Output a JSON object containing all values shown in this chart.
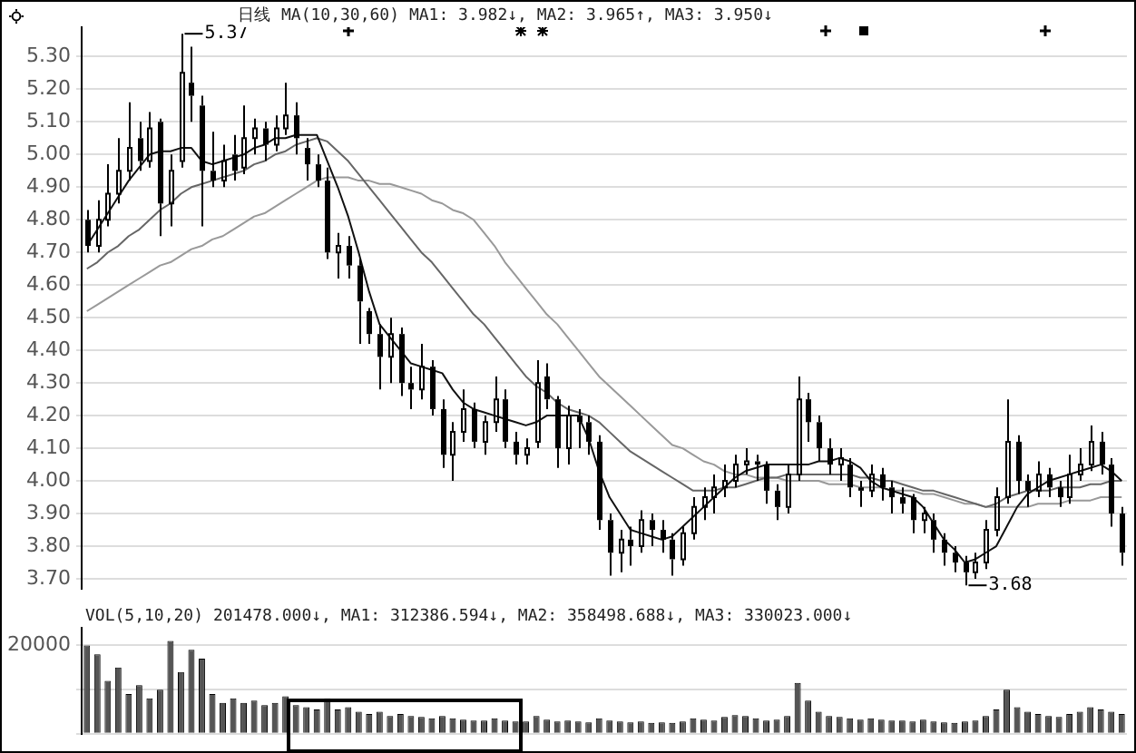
{
  "chart_data": [
    {
      "type": "candlestick",
      "title": "日线",
      "subtitle": "MA(10,30,60) MA1: 3.982↓, MA2: 3.965↑, MA3: 3.950↓",
      "annotations": [
        "5.37",
        "3.68"
      ],
      "categories": [
        null,
        null,
        null,
        null,
        null,
        null,
        null,
        null,
        null,
        null,
        null,
        null,
        null,
        null,
        null,
        null,
        null,
        null,
        null,
        null,
        null,
        null,
        null,
        null,
        null,
        null,
        null,
        null,
        null,
        null,
        null,
        null,
        null,
        null,
        null,
        null,
        null,
        null,
        null,
        null,
        null,
        null,
        null,
        null,
        null,
        null,
        null,
        null,
        null,
        null,
        null,
        null,
        null,
        null,
        null,
        null,
        null,
        null,
        null,
        null,
        null,
        null,
        null,
        null,
        null,
        null,
        null,
        null,
        null,
        null,
        null,
        null,
        null,
        null,
        null,
        null,
        null,
        null,
        null,
        null,
        null,
        null,
        null,
        null,
        null,
        null,
        null,
        null,
        null,
        null,
        null,
        null,
        null,
        null,
        null,
        null,
        null,
        null,
        null,
        null
      ],
      "color": "#000000",
      "ohlc": [
        [
          4.8,
          4.83,
          4.7,
          4.72
        ],
        [
          4.72,
          4.86,
          4.7,
          4.8
        ],
        [
          4.8,
          4.97,
          4.78,
          4.88
        ],
        [
          4.88,
          5.05,
          4.85,
          4.95
        ],
        [
          4.95,
          5.16,
          4.92,
          5.02
        ],
        [
          5.05,
          5.1,
          4.95,
          4.98
        ],
        [
          4.98,
          5.13,
          4.96,
          5.08
        ],
        [
          5.1,
          5.11,
          4.75,
          4.85
        ],
        [
          4.85,
          5.0,
          4.78,
          4.95
        ],
        [
          4.98,
          5.37,
          4.96,
          5.25
        ],
        [
          5.22,
          5.33,
          5.1,
          5.18
        ],
        [
          5.15,
          5.18,
          4.78,
          4.95
        ],
        [
          4.95,
          5.07,
          4.9,
          4.92
        ],
        [
          4.92,
          5.03,
          4.9,
          4.98
        ],
        [
          5.0,
          5.06,
          4.92,
          4.95
        ],
        [
          4.96,
          5.15,
          4.94,
          5.05
        ],
        [
          5.05,
          5.11,
          5.0,
          5.08
        ],
        [
          5.08,
          5.1,
          4.98,
          5.03
        ],
        [
          5.03,
          5.12,
          5.01,
          5.08
        ],
        [
          5.08,
          5.22,
          5.06,
          5.12
        ],
        [
          5.12,
          5.16,
          5.0,
          5.05
        ],
        [
          5.02,
          5.05,
          4.92,
          4.97
        ],
        [
          4.97,
          5.0,
          4.9,
          4.92
        ],
        [
          4.92,
          4.96,
          4.68,
          4.7
        ],
        [
          4.7,
          4.76,
          4.62,
          4.72
        ],
        [
          4.72,
          4.75,
          4.62,
          4.66
        ],
        [
          4.66,
          4.68,
          4.42,
          4.55
        ],
        [
          4.52,
          4.53,
          4.42,
          4.45
        ],
        [
          4.45,
          4.48,
          4.28,
          4.38
        ],
        [
          4.38,
          4.5,
          4.3,
          4.45
        ],
        [
          4.45,
          4.47,
          4.26,
          4.3
        ],
        [
          4.3,
          4.35,
          4.22,
          4.28
        ],
        [
          4.28,
          4.42,
          4.25,
          4.35
        ],
        [
          4.35,
          4.37,
          4.2,
          4.22
        ],
        [
          4.22,
          4.25,
          4.04,
          4.08
        ],
        [
          4.08,
          4.18,
          4.0,
          4.15
        ],
        [
          4.15,
          4.28,
          4.12,
          4.22
        ],
        [
          4.22,
          4.24,
          4.1,
          4.12
        ],
        [
          4.12,
          4.2,
          4.08,
          4.18
        ],
        [
          4.18,
          4.32,
          4.15,
          4.25
        ],
        [
          4.25,
          4.28,
          4.1,
          4.12
        ],
        [
          4.12,
          4.15,
          4.05,
          4.08
        ],
        [
          4.08,
          4.13,
          4.05,
          4.1
        ],
        [
          4.12,
          4.37,
          4.1,
          4.3
        ],
        [
          4.32,
          4.36,
          4.22,
          4.25
        ],
        [
          4.25,
          4.26,
          4.04,
          4.1
        ],
        [
          4.1,
          4.23,
          4.05,
          4.2
        ],
        [
          4.2,
          4.22,
          4.1,
          4.18
        ],
        [
          4.18,
          4.2,
          4.08,
          4.12
        ],
        [
          4.12,
          4.14,
          3.85,
          3.88
        ],
        [
          3.88,
          3.9,
          3.71,
          3.78
        ],
        [
          3.78,
          3.85,
          3.72,
          3.82
        ],
        [
          3.82,
          3.86,
          3.74,
          3.8
        ],
        [
          3.8,
          3.91,
          3.78,
          3.88
        ],
        [
          3.88,
          3.9,
          3.8,
          3.85
        ],
        [
          3.85,
          3.88,
          3.78,
          3.82
        ],
        [
          3.82,
          3.84,
          3.71,
          3.76
        ],
        [
          3.76,
          3.86,
          3.74,
          3.84
        ],
        [
          3.84,
          3.95,
          3.82,
          3.92
        ],
        [
          3.92,
          3.98,
          3.88,
          3.95
        ],
        [
          3.95,
          4.02,
          3.9,
          3.98
        ],
        [
          3.98,
          4.05,
          3.95,
          4.0
        ],
        [
          4.0,
          4.08,
          3.98,
          4.05
        ],
        [
          4.05,
          4.1,
          4.02,
          4.06
        ],
        [
          4.06,
          4.08,
          4.0,
          4.05
        ],
        [
          4.05,
          4.06,
          3.93,
          3.97
        ],
        [
          3.97,
          3.99,
          3.88,
          3.92
        ],
        [
          3.92,
          4.05,
          3.9,
          4.02
        ],
        [
          4.02,
          4.32,
          4.0,
          4.25
        ],
        [
          4.25,
          4.27,
          4.12,
          4.18
        ],
        [
          4.18,
          4.2,
          4.06,
          4.1
        ],
        [
          4.1,
          4.13,
          4.02,
          4.05
        ],
        [
          4.05,
          4.1,
          4.0,
          4.07
        ],
        [
          4.05,
          4.07,
          3.95,
          3.98
        ],
        [
          3.98,
          4.0,
          3.92,
          3.97
        ],
        [
          3.97,
          4.05,
          3.95,
          4.02
        ],
        [
          4.02,
          4.04,
          3.94,
          3.98
        ],
        [
          3.98,
          4.0,
          3.9,
          3.95
        ],
        [
          3.95,
          3.98,
          3.9,
          3.93
        ],
        [
          3.95,
          3.96,
          3.84,
          3.88
        ],
        [
          3.88,
          3.92,
          3.84,
          3.9
        ],
        [
          3.88,
          3.9,
          3.78,
          3.82
        ],
        [
          3.82,
          3.84,
          3.74,
          3.78
        ],
        [
          3.78,
          3.8,
          3.72,
          3.75
        ],
        [
          3.75,
          3.77,
          3.68,
          3.72
        ],
        [
          3.72,
          3.78,
          3.7,
          3.75
        ],
        [
          3.75,
          3.88,
          3.73,
          3.85
        ],
        [
          3.85,
          3.98,
          3.83,
          3.95
        ],
        [
          3.95,
          4.25,
          3.93,
          4.12
        ],
        [
          4.12,
          4.14,
          3.96,
          4.0
        ],
        [
          4.0,
          4.02,
          3.92,
          3.97
        ],
        [
          3.97,
          4.06,
          3.95,
          4.02
        ],
        [
          4.02,
          4.04,
          3.95,
          3.98
        ],
        [
          3.98,
          4.0,
          3.92,
          3.95
        ],
        [
          3.95,
          4.08,
          3.93,
          4.02
        ],
        [
          4.02,
          4.1,
          4.0,
          4.05
        ],
        [
          4.05,
          4.17,
          4.03,
          4.12
        ],
        [
          4.12,
          4.15,
          4.02,
          4.05
        ],
        [
          4.05,
          4.07,
          3.86,
          3.9
        ],
        [
          3.9,
          3.92,
          3.74,
          3.78
        ]
      ],
      "series": [
        {
          "type": "line",
          "color": "#111111",
          "values": [
            4.72,
            4.77,
            4.82,
            4.87,
            4.92,
            4.96,
            5.0,
            5.01,
            5.01,
            5.02,
            5.02,
            4.98,
            4.97,
            4.98,
            4.99,
            5.0,
            5.02,
            5.03,
            5.05,
            5.05,
            5.06,
            5.06,
            5.06,
            4.98,
            4.9,
            4.81,
            4.7,
            4.58,
            4.48,
            4.44,
            4.4,
            4.36,
            4.35,
            4.34,
            4.33,
            4.28,
            4.24,
            4.22,
            4.21,
            4.2,
            4.19,
            4.18,
            4.17,
            4.18,
            4.2,
            4.2,
            4.2,
            4.2,
            4.13,
            4.03,
            3.95,
            3.9,
            3.85,
            3.84,
            3.83,
            3.82,
            3.83,
            3.86,
            3.89,
            3.92,
            3.95,
            3.98,
            4.01,
            4.03,
            4.04,
            4.05,
            4.05,
            4.05,
            4.05,
            4.05,
            4.06,
            4.06,
            4.07,
            4.06,
            4.04,
            4.0,
            3.98,
            3.97,
            3.96,
            3.95,
            3.92,
            3.87,
            3.82,
            3.79,
            3.75,
            3.76,
            3.78,
            3.8,
            3.86,
            3.92,
            3.96,
            3.98,
            4.0,
            4.01,
            4.02,
            4.03,
            4.04,
            4.05,
            4.03,
            4.0
          ]
        },
        {
          "type": "line",
          "color": "#666666",
          "values": [
            4.65,
            4.67,
            4.7,
            4.72,
            4.75,
            4.77,
            4.8,
            4.83,
            4.85,
            4.88,
            4.9,
            4.91,
            4.92,
            4.93,
            4.94,
            4.95,
            4.97,
            4.98,
            5.0,
            5.01,
            5.03,
            5.04,
            5.05,
            5.04,
            5.01,
            4.98,
            4.94,
            4.9,
            4.86,
            4.82,
            4.78,
            4.74,
            4.7,
            4.67,
            4.63,
            4.59,
            4.55,
            4.51,
            4.48,
            4.44,
            4.4,
            4.36,
            4.32,
            4.29,
            4.27,
            4.24,
            4.22,
            4.21,
            4.2,
            4.18,
            4.15,
            4.12,
            4.09,
            4.07,
            4.05,
            4.03,
            4.01,
            3.99,
            3.97,
            3.97,
            3.97,
            3.98,
            3.98,
            3.99,
            4.0,
            4.01,
            4.01,
            4.02,
            4.02,
            4.02,
            4.02,
            4.02,
            4.02,
            4.02,
            4.01,
            4.01,
            4.0,
            4.0,
            3.99,
            3.98,
            3.97,
            3.97,
            3.96,
            3.95,
            3.94,
            3.93,
            3.92,
            3.93,
            3.95,
            3.96,
            3.97,
            3.97,
            3.97,
            3.98,
            3.98,
            3.98,
            3.99,
            3.99,
            4.0,
            4.0
          ]
        },
        {
          "type": "line",
          "color": "#999999",
          "values": [
            4.52,
            4.54,
            4.56,
            4.58,
            4.6,
            4.62,
            4.64,
            4.66,
            4.67,
            4.69,
            4.71,
            4.72,
            4.74,
            4.75,
            4.77,
            4.79,
            4.81,
            4.82,
            4.84,
            4.86,
            4.88,
            4.9,
            4.92,
            4.93,
            4.93,
            4.93,
            4.92,
            4.92,
            4.91,
            4.91,
            4.9,
            4.89,
            4.88,
            4.86,
            4.85,
            4.83,
            4.82,
            4.8,
            4.76,
            4.72,
            4.67,
            4.63,
            4.59,
            4.55,
            4.51,
            4.48,
            4.44,
            4.4,
            4.36,
            4.32,
            4.29,
            4.26,
            4.23,
            4.2,
            4.17,
            4.14,
            4.11,
            4.1,
            4.08,
            4.06,
            4.05,
            4.03,
            4.02,
            4.02,
            4.01,
            4.01,
            4.01,
            4.0,
            4.0,
            4.0,
            4.0,
            3.99,
            3.99,
            3.99,
            3.98,
            3.98,
            3.98,
            3.97,
            3.97,
            3.97,
            3.96,
            3.96,
            3.95,
            3.94,
            3.93,
            3.93,
            3.92,
            3.92,
            3.92,
            3.92,
            3.92,
            3.93,
            3.93,
            3.93,
            3.94,
            3.94,
            3.94,
            3.95,
            3.95,
            3.95
          ]
        }
      ],
      "ylim": [
        3.67,
        5.39
      ],
      "yticks": [
        {
          "value": 3.7,
          "label": "3.70"
        },
        {
          "value": 3.8,
          "label": "3.80"
        },
        {
          "value": 3.9,
          "label": "3.90"
        },
        {
          "value": 4.0,
          "label": "4.00"
        },
        {
          "value": 4.1,
          "label": "4.10"
        },
        {
          "value": 4.2,
          "label": "4.20"
        },
        {
          "value": 4.3,
          "label": "4.30"
        },
        {
          "value": 4.4,
          "label": "4.40"
        },
        {
          "value": 4.5,
          "label": "4.50"
        },
        {
          "value": 4.6,
          "label": "4.60"
        },
        {
          "value": 4.7,
          "label": "4.70"
        },
        {
          "value": 4.8,
          "label": "4.80"
        },
        {
          "value": 4.9,
          "label": "4.90"
        },
        {
          "value": 5.0,
          "label": "5.00"
        },
        {
          "value": 5.1,
          "label": "5.10"
        },
        {
          "value": 5.2,
          "label": "5.20"
        },
        {
          "value": 5.3,
          "label": "5.30"
        }
      ],
      "grid": "y",
      "tick_labels": "y"
    },
    {
      "type": "bar",
      "annotations": [
        "VOL(5,10,20) 201478.000↓, MA1: 312386.594↓, MA2: 358498.688↓, MA3: 330023.000↓"
      ],
      "categories": [
        null,
        null,
        null,
        null,
        null,
        null,
        null,
        null,
        null,
        null,
        null,
        null,
        null,
        null,
        null,
        null,
        null,
        null,
        null,
        null,
        null,
        null,
        null,
        null,
        null,
        null,
        null,
        null,
        null,
        null,
        null,
        null,
        null,
        null,
        null,
        null,
        null,
        null,
        null,
        null,
        null,
        null,
        null,
        null,
        null,
        null,
        null,
        null,
        null,
        null,
        null,
        null,
        null,
        null,
        null,
        null,
        null,
        null,
        null,
        null,
        null,
        null,
        null,
        null,
        null,
        null,
        null,
        null,
        null,
        null,
        null,
        null,
        null,
        null,
        null,
        null,
        null,
        null,
        null,
        null,
        null,
        null,
        null,
        null,
        null,
        null,
        null,
        null,
        null,
        null,
        null,
        null,
        null,
        null,
        null,
        null,
        null,
        null,
        null,
        null
      ],
      "color": "#555555",
      "values": [
        20000,
        18000,
        12000,
        15000,
        9000,
        11000,
        8000,
        10000,
        21000,
        14000,
        19000,
        17000,
        9000,
        7000,
        8000,
        7000,
        7500,
        6500,
        7000,
        8500,
        6500,
        6000,
        5500,
        8000,
        5500,
        6000,
        5000,
        4500,
        5000,
        4000,
        4500,
        4000,
        3800,
        3500,
        4000,
        3500,
        3200,
        3000,
        3000,
        3500,
        3000,
        2800,
        2800,
        4000,
        3200,
        2800,
        3000,
        2800,
        2600,
        3500,
        3000,
        2800,
        2600,
        2800,
        2500,
        2600,
        2500,
        2800,
        3500,
        3200,
        3000,
        3800,
        4200,
        4000,
        3500,
        3000,
        3200,
        4000,
        11500,
        7500,
        5000,
        4000,
        3800,
        3500,
        3200,
        3500,
        3200,
        3000,
        3000,
        2800,
        3200,
        2800,
        2600,
        2500,
        2800,
        3000,
        4000,
        5500,
        10000,
        6000,
        5000,
        4500,
        4000,
        3800,
        4500,
        5000,
        6000,
        5500,
        5000,
        4500
      ],
      "ylim": [
        0,
        24000
      ],
      "yticks": [
        {
          "value": 0,
          "label": null
        },
        {
          "value": 10000,
          "label": null
        },
        20000
      ],
      "grid": "y",
      "tick_labels": "y"
    }
  ]
}
